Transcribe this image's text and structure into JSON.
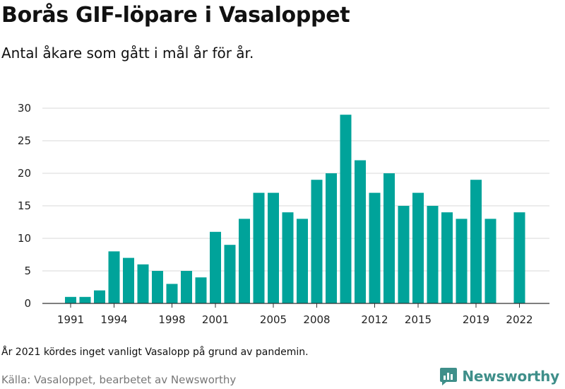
{
  "header": {
    "title": "Borås GIF-löpare i Vasaloppet",
    "subtitle": "Antal åkare som gått i mål år för år."
  },
  "footer": {
    "note": "År 2021 kördes inget vanligt Vasalopp på grund av pandemin.",
    "source": "Källa: Vasaloppet, bearbetet av Newsworthy",
    "brand": "Newsworthy",
    "brand_icon": "newsworthy-logo-icon"
  },
  "colors": {
    "bar": "#00a39a",
    "grid": "#d9d9d9",
    "axis": "#333333",
    "brand": "#3f8f8a"
  },
  "chart_data": {
    "type": "bar",
    "title": "Borås GIF-löpare i Vasaloppet",
    "subtitle": "Antal åkare som gått i mål år för år.",
    "xlabel": "",
    "ylabel": "",
    "ylim": [
      0,
      30
    ],
    "yticks": [
      0,
      5,
      10,
      15,
      20,
      25,
      30
    ],
    "xtick_labels": [
      "1991",
      "1994",
      "1998",
      "2001",
      "2005",
      "2008",
      "2012",
      "2015",
      "2019",
      "2022"
    ],
    "grid": true,
    "legend": "none",
    "categories": [
      "1991",
      "1992",
      "1993",
      "1994",
      "1995",
      "1996",
      "1997",
      "1998",
      "1999",
      "2000",
      "2001",
      "2002",
      "2003",
      "2004",
      "2005",
      "2006",
      "2007",
      "2008",
      "2009",
      "2010",
      "2011",
      "2012",
      "2013",
      "2014",
      "2015",
      "2016",
      "2017",
      "2018",
      "2019",
      "2020",
      "2021",
      "2022"
    ],
    "values": [
      1,
      1,
      2,
      8,
      7,
      6,
      5,
      3,
      5,
      4,
      11,
      9,
      13,
      17,
      17,
      14,
      13,
      19,
      20,
      29,
      22,
      17,
      20,
      15,
      17,
      15,
      14,
      13,
      19,
      13,
      null,
      14
    ]
  }
}
